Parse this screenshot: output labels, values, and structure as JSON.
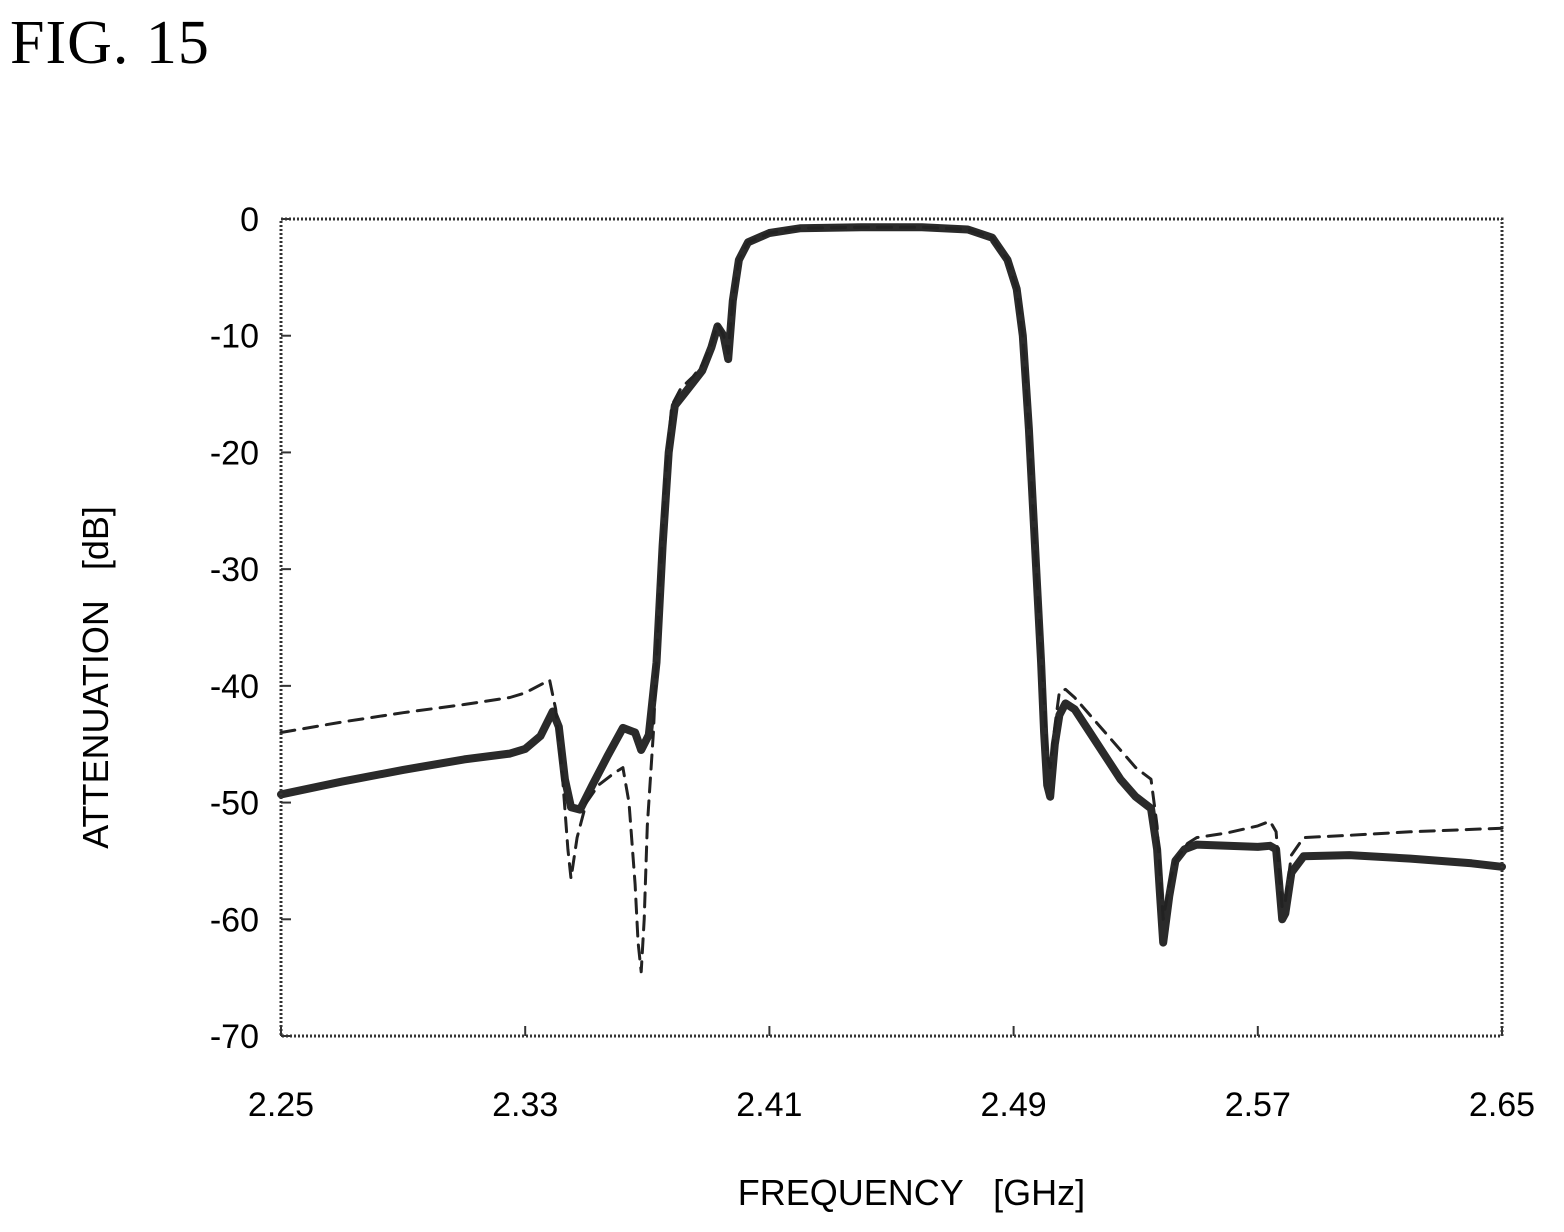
{
  "figure_label": "FIG. 15",
  "chart_data": {
    "type": "line",
    "title": "",
    "xlabel": "FREQUENCY   [GHz]",
    "ylabel": "ATTENUATION   [dB]",
    "xlim": [
      2.25,
      2.65
    ],
    "ylim": [
      -70,
      0
    ],
    "x_ticks": [
      "2.25",
      "2.33",
      "2.41",
      "2.49",
      "2.57",
      "2.65"
    ],
    "y_ticks": [
      "0",
      "-10",
      "-20",
      "-30",
      "-40",
      "-50",
      "-60",
      "-70"
    ],
    "grid": false,
    "legend": "none",
    "series": [
      {
        "style": "solid-thick",
        "points": [
          [
            2.25,
            -49.3
          ],
          [
            2.27,
            -48.2
          ],
          [
            2.29,
            -47.2
          ],
          [
            2.31,
            -46.3
          ],
          [
            2.325,
            -45.8
          ],
          [
            2.33,
            -45.4
          ],
          [
            2.335,
            -44.3
          ],
          [
            2.339,
            -42.2
          ],
          [
            2.341,
            -43.5
          ],
          [
            2.343,
            -48.0
          ],
          [
            2.345,
            -50.4
          ],
          [
            2.348,
            -50.6
          ],
          [
            2.352,
            -48.5
          ],
          [
            2.357,
            -46.0
          ],
          [
            2.362,
            -43.6
          ],
          [
            2.366,
            -44.0
          ],
          [
            2.368,
            -45.5
          ],
          [
            2.3705,
            -44.2
          ],
          [
            2.373,
            -38.0
          ],
          [
            2.375,
            -28.0
          ],
          [
            2.377,
            -20.0
          ],
          [
            2.379,
            -16.0
          ],
          [
            2.382,
            -15.0
          ],
          [
            2.385,
            -14.0
          ],
          [
            2.388,
            -13.0
          ],
          [
            2.391,
            -11.0
          ],
          [
            2.393,
            -9.2
          ],
          [
            2.395,
            -10.0
          ],
          [
            2.3965,
            -12.0
          ],
          [
            2.398,
            -7.0
          ],
          [
            2.4,
            -3.5
          ],
          [
            2.403,
            -2.0
          ],
          [
            2.41,
            -1.2
          ],
          [
            2.42,
            -0.8
          ],
          [
            2.44,
            -0.7
          ],
          [
            2.46,
            -0.7
          ],
          [
            2.475,
            -0.9
          ],
          [
            2.483,
            -1.6
          ],
          [
            2.488,
            -3.5
          ],
          [
            2.491,
            -6.0
          ],
          [
            2.493,
            -10.0
          ],
          [
            2.495,
            -18.0
          ],
          [
            2.497,
            -28.0
          ],
          [
            2.499,
            -38.0
          ],
          [
            2.5,
            -44.0
          ],
          [
            2.501,
            -48.5
          ],
          [
            2.502,
            -49.5
          ],
          [
            2.5035,
            -45.0
          ],
          [
            2.505,
            -42.5
          ],
          [
            2.507,
            -41.5
          ],
          [
            2.51,
            -42.0
          ],
          [
            2.515,
            -44.0
          ],
          [
            2.52,
            -46.0
          ],
          [
            2.525,
            -48.0
          ],
          [
            2.53,
            -49.5
          ],
          [
            2.535,
            -50.5
          ],
          [
            2.537,
            -54.0
          ],
          [
            2.538,
            -58.0
          ],
          [
            2.539,
            -62.0
          ],
          [
            2.541,
            -58.0
          ],
          [
            2.543,
            -55.0
          ],
          [
            2.546,
            -54.0
          ],
          [
            2.55,
            -53.6
          ],
          [
            2.56,
            -53.7
          ],
          [
            2.57,
            -53.8
          ],
          [
            2.574,
            -53.7
          ],
          [
            2.576,
            -54.0
          ],
          [
            2.577,
            -57.0
          ],
          [
            2.578,
            -60.0
          ],
          [
            2.579,
            -59.5
          ],
          [
            2.581,
            -56.0
          ],
          [
            2.585,
            -54.6
          ],
          [
            2.6,
            -54.5
          ],
          [
            2.62,
            -54.8
          ],
          [
            2.64,
            -55.2
          ],
          [
            2.65,
            -55.5
          ]
        ]
      },
      {
        "style": "dashed",
        "points": [
          [
            2.25,
            -44.0
          ],
          [
            2.27,
            -43.1
          ],
          [
            2.29,
            -42.3
          ],
          [
            2.31,
            -41.6
          ],
          [
            2.325,
            -41.0
          ],
          [
            2.33,
            -40.6
          ],
          [
            2.338,
            -39.5
          ],
          [
            2.34,
            -42.0
          ],
          [
            2.342,
            -47.0
          ],
          [
            2.344,
            -54.0
          ],
          [
            2.345,
            -56.5
          ],
          [
            2.347,
            -53.0
          ],
          [
            2.35,
            -50.0
          ],
          [
            2.354,
            -48.5
          ],
          [
            2.359,
            -47.5
          ],
          [
            2.362,
            -47.0
          ],
          [
            2.364,
            -50.0
          ],
          [
            2.366,
            -57.0
          ],
          [
            2.367,
            -62.0
          ],
          [
            2.368,
            -64.5
          ],
          [
            2.369,
            -60.0
          ],
          [
            2.37,
            -52.0
          ],
          [
            2.372,
            -44.0
          ],
          [
            2.374,
            -32.0
          ],
          [
            2.376,
            -22.0
          ],
          [
            2.378,
            -16.0
          ],
          [
            2.381,
            -14.5
          ],
          [
            2.385,
            -13.5
          ],
          [
            2.388,
            -12.5
          ],
          [
            2.391,
            -10.8
          ],
          [
            2.393,
            -9.0
          ],
          [
            2.395,
            -10.0
          ],
          [
            2.3965,
            -11.5
          ],
          [
            2.398,
            -7.0
          ],
          [
            2.4,
            -3.5
          ],
          [
            2.403,
            -2.0
          ],
          [
            2.41,
            -1.2
          ],
          [
            2.42,
            -0.8
          ],
          [
            2.44,
            -0.7
          ],
          [
            2.46,
            -0.7
          ],
          [
            2.475,
            -0.9
          ],
          [
            2.483,
            -1.6
          ],
          [
            2.488,
            -3.5
          ],
          [
            2.491,
            -6.0
          ],
          [
            2.493,
            -10.0
          ],
          [
            2.495,
            -18.0
          ],
          [
            2.497,
            -28.0
          ],
          [
            2.499,
            -37.0
          ],
          [
            2.5,
            -41.0
          ],
          [
            2.501,
            -46.0
          ],
          [
            2.502,
            -47.0
          ],
          [
            2.5035,
            -43.5
          ],
          [
            2.505,
            -40.5
          ],
          [
            2.507,
            -40.3
          ],
          [
            2.51,
            -41.0
          ],
          [
            2.515,
            -42.5
          ],
          [
            2.52,
            -44.0
          ],
          [
            2.525,
            -45.5
          ],
          [
            2.53,
            -47.0
          ],
          [
            2.535,
            -48.0
          ],
          [
            2.537,
            -52.0
          ],
          [
            2.538,
            -56.0
          ],
          [
            2.539,
            -60.0
          ],
          [
            2.541,
            -57.0
          ],
          [
            2.543,
            -55.0
          ],
          [
            2.547,
            -53.5
          ],
          [
            2.55,
            -53.0
          ],
          [
            2.56,
            -52.6
          ],
          [
            2.57,
            -52.0
          ],
          [
            2.574,
            -51.6
          ],
          [
            2.576,
            -52.5
          ],
          [
            2.577,
            -56.0
          ],
          [
            2.578,
            -59.0
          ],
          [
            2.579,
            -58.5
          ],
          [
            2.581,
            -54.5
          ],
          [
            2.585,
            -53.0
          ],
          [
            2.6,
            -52.8
          ],
          [
            2.62,
            -52.5
          ],
          [
            2.64,
            -52.3
          ],
          [
            2.65,
            -52.2
          ]
        ]
      }
    ]
  }
}
